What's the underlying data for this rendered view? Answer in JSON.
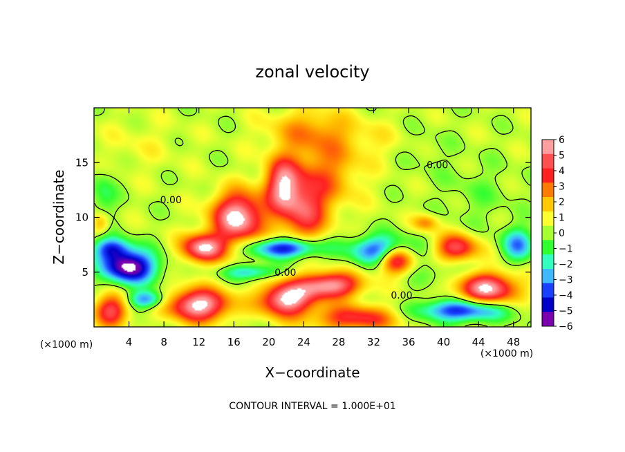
{
  "chart_data": {
    "type": "heatmap",
    "title": "zonal velocity",
    "xlabel": "X−coordinate",
    "ylabel": "Z−coordinate",
    "x_unit": "(×1000 m)",
    "y_unit": "(×1000 m)",
    "xlim": [
      0,
      50
    ],
    "ylim": [
      0,
      20
    ],
    "x_ticks": [
      4,
      8,
      12,
      16,
      20,
      24,
      28,
      32,
      36,
      40,
      44,
      48
    ],
    "y_ticks": [
      5,
      10,
      15
    ],
    "colorbar": {
      "ticks": [
        6,
        5,
        4,
        3,
        2,
        1,
        0,
        -1,
        -2,
        -3,
        -4,
        -5,
        -6
      ],
      "tick_labels": [
        "6",
        "5",
        "4",
        "3",
        "2",
        "1",
        "0",
        "−1",
        "−2",
        "−3",
        "−4",
        "−5",
        "−6"
      ],
      "colors": [
        "#ff9e9e",
        "#ff5050",
        "#ff2020",
        "#ff7a00",
        "#ffc800",
        "#ffff30",
        "#a8ff30",
        "#30ff30",
        "#30ffc0",
        "#40b8ff",
        "#1a40ff",
        "#0000c8",
        "#7a00b0"
      ],
      "range": [
        -6,
        6
      ]
    },
    "contour_labels": [
      {
        "text": "0.00",
        "x": 8.8,
        "z": 11.6
      },
      {
        "text": "0.00",
        "x": 39.3,
        "z": 14.8
      },
      {
        "text": "0.00",
        "x": 21.9,
        "z": 5.0
      },
      {
        "text": "0.00",
        "x": 35.2,
        "z": 2.9
      }
    ],
    "footer": "CONTOUR INTERVAL = 1.000E+01",
    "background_value": 0.3,
    "features": [
      {
        "x": 16.5,
        "z": 10.0,
        "sx": 3.0,
        "sz": 2.3,
        "v": 6.5
      },
      {
        "x": 21.5,
        "z": 13.0,
        "sx": 2.0,
        "sz": 2.5,
        "v": 5.0
      },
      {
        "x": 24.0,
        "z": 10.5,
        "sx": 2.5,
        "sz": 3.0,
        "v": 4.0
      },
      {
        "x": 12.5,
        "z": 7.2,
        "sx": 2.5,
        "sz": 1.3,
        "v": 6.0
      },
      {
        "x": 26.5,
        "z": 14.0,
        "sx": 4.0,
        "sz": 3.5,
        "v": 2.5
      },
      {
        "x": 24.5,
        "z": 18.0,
        "sx": 5.0,
        "sz": 2.0,
        "v": 2.0
      },
      {
        "x": 12.0,
        "z": 2.0,
        "sx": 3.5,
        "sz": 1.5,
        "v": 6.5
      },
      {
        "x": 22.0,
        "z": 2.5,
        "sx": 3.0,
        "sz": 1.5,
        "v": 6.5
      },
      {
        "x": 27.0,
        "z": 3.8,
        "sx": 3.5,
        "sz": 1.2,
        "v": 6.0
      },
      {
        "x": 30.0,
        "z": 0.8,
        "sx": 5.0,
        "sz": 1.2,
        "v": 4.0
      },
      {
        "x": 34.5,
        "z": 6.2,
        "sx": 2.0,
        "sz": 1.3,
        "v": 6.0
      },
      {
        "x": 45.0,
        "z": 3.5,
        "sx": 3.5,
        "sz": 1.5,
        "v": 6.0
      },
      {
        "x": 41.5,
        "z": 7.2,
        "sx": 2.5,
        "sz": 1.3,
        "v": 4.5
      },
      {
        "x": 2.0,
        "z": 1.5,
        "sx": 2.0,
        "sz": 1.5,
        "v": 4.5
      },
      {
        "x": 4.0,
        "z": 5.5,
        "sx": 3.0,
        "sz": 1.5,
        "v": -7.0
      },
      {
        "x": 2.0,
        "z": 7.2,
        "sx": 2.0,
        "sz": 1.0,
        "v": -4.0
      },
      {
        "x": 22.0,
        "z": 7.2,
        "sx": 4.0,
        "sz": 0.9,
        "v": -5.5
      },
      {
        "x": 33.0,
        "z": 7.0,
        "sx": 3.5,
        "sz": 1.3,
        "v": -5.0
      },
      {
        "x": 18.0,
        "z": 5.0,
        "sx": 3.0,
        "sz": 0.7,
        "v": -3.0
      },
      {
        "x": 42.0,
        "z": 1.5,
        "sx": 5.0,
        "sz": 1.0,
        "v": -5.0
      },
      {
        "x": 6.0,
        "z": 2.5,
        "sx": 2.0,
        "sz": 0.8,
        "v": -4.0
      },
      {
        "x": 40.0,
        "z": 5.0,
        "sx": 4.0,
        "sz": 1.2,
        "v": -1.0
      },
      {
        "x": 48.5,
        "z": 7.5,
        "sx": 1.8,
        "sz": 1.5,
        "v": -3.5
      },
      {
        "x": 1.0,
        "z": 12.0,
        "sx": 1.5,
        "sz": 2.5,
        "v": -1.5
      },
      {
        "x": 44.0,
        "z": 12.0,
        "sx": 4.0,
        "sz": 3.0,
        "v": -0.7
      },
      {
        "x": 38.0,
        "z": 16.0,
        "sx": 3.0,
        "sz": 2.5,
        "v": -0.4
      },
      {
        "x": 5.0,
        "z": 16.5,
        "sx": 5.0,
        "sz": 2.5,
        "v": 0.6
      },
      {
        "x": 32.0,
        "z": 17.0,
        "sx": 4.0,
        "sz": 2.0,
        "v": 0.7
      },
      {
        "x": 38.0,
        "z": 9.5,
        "sx": 1.5,
        "sz": 0.8,
        "v": 2.5
      },
      {
        "x": 0.8,
        "z": 9.5,
        "sx": 1.0,
        "sz": 1.0,
        "v": 2.5
      }
    ]
  }
}
